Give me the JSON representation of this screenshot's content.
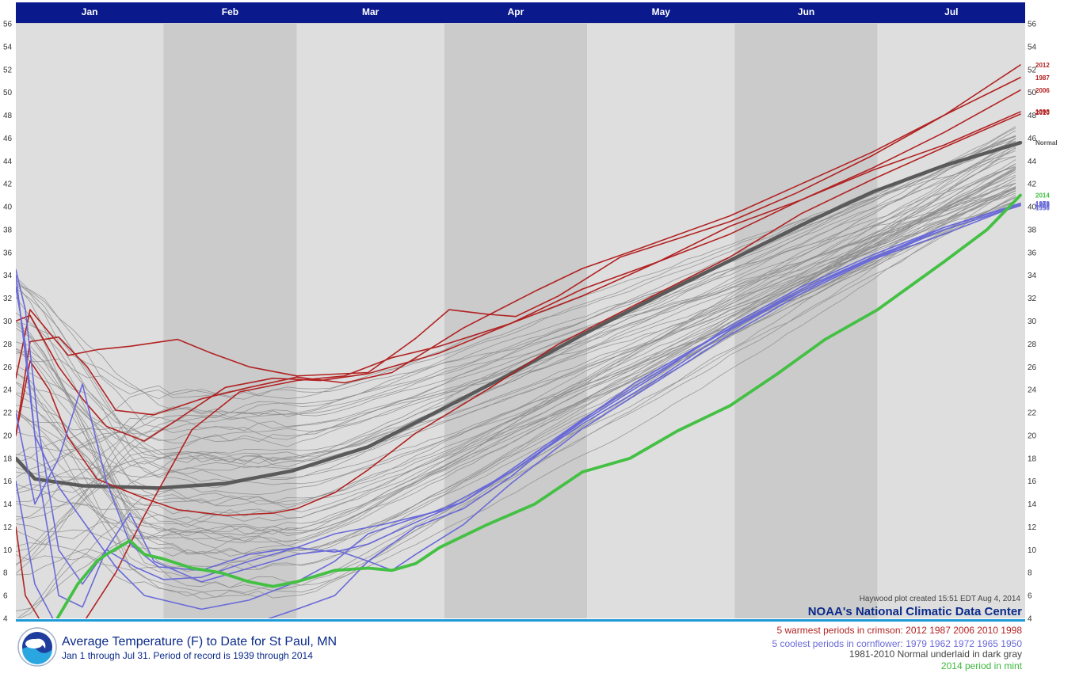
{
  "title": "Average Temperature (F) to Date for St Paul, MN",
  "subtitle": "Jan 1 through Jul 31. Period of record is 1939 through 2014",
  "credit": "Haywood plot created 15:51 EDT Aug 4, 2014",
  "source": "NOAA's National Climatic Data Center",
  "legend": {
    "warm": "5 warmest periods in crimson: 2012 1987 2006 2010 1998",
    "cool": "5 coolest periods in cornflower: 1979 1962 1972 1965 1950",
    "normal": "1981-2010 Normal underlaid in dark gray",
    "current": "2014 period in mint"
  },
  "colors": {
    "warm": "#b22222",
    "cool": "#6a6ad8",
    "normal": "#5a5a5a",
    "current": "#44c044",
    "other": "#8c8c8c",
    "header": "#0a1a8c",
    "band_light": "#dedede",
    "band_dark": "#cbcbcb"
  },
  "chart_data": {
    "type": "line",
    "x_unit": "day of year",
    "months": [
      "Jan",
      "Feb",
      "Mar",
      "Apr",
      "May",
      "Jun",
      "Jul"
    ],
    "month_days": [
      31,
      28,
      31,
      30,
      31,
      30,
      31
    ],
    "ylim": [
      4,
      56
    ],
    "yticks": [
      4,
      6,
      8,
      10,
      12,
      14,
      16,
      18,
      20,
      22,
      24,
      26,
      28,
      30,
      32,
      34,
      36,
      38,
      40,
      42,
      44,
      46,
      48,
      50,
      52,
      54,
      56
    ],
    "series": [
      {
        "name": "Normal",
        "group": "normal",
        "label": "Normal",
        "points": [
          [
            1,
            18
          ],
          [
            5,
            16.2
          ],
          [
            15,
            15.6
          ],
          [
            31,
            15.4
          ],
          [
            45,
            15.8
          ],
          [
            59,
            16.9
          ],
          [
            75,
            19
          ],
          [
            90,
            22.2
          ],
          [
            105,
            25.4
          ],
          [
            120,
            28.8
          ],
          [
            135,
            32
          ],
          [
            151,
            35.3
          ],
          [
            166,
            38.4
          ],
          [
            181,
            41.3
          ],
          [
            196,
            43.6
          ],
          [
            212,
            45.6
          ]
        ]
      },
      {
        "name": "2012",
        "group": "warm",
        "label": "2012",
        "points": [
          [
            1,
            25
          ],
          [
            4,
            31
          ],
          [
            8,
            29
          ],
          [
            12,
            27
          ],
          [
            18,
            27.5
          ],
          [
            25,
            27.8
          ],
          [
            35,
            28.4
          ],
          [
            42,
            27.2
          ],
          [
            50,
            26
          ],
          [
            60,
            25.2
          ],
          [
            75,
            25.5
          ],
          [
            85,
            28.5
          ],
          [
            92,
            31
          ],
          [
            100,
            30.6
          ],
          [
            106,
            30.4
          ],
          [
            115,
            32.2
          ],
          [
            128,
            35.6
          ],
          [
            140,
            37.2
          ],
          [
            151,
            38.7
          ],
          [
            165,
            41.2
          ],
          [
            181,
            44.5
          ],
          [
            196,
            48
          ],
          [
            212,
            52.4
          ]
        ]
      },
      {
        "name": "1987",
        "group": "warm",
        "label": "1987",
        "points": [
          [
            1,
            20
          ],
          [
            4,
            28.2
          ],
          [
            10,
            28.6
          ],
          [
            16,
            26
          ],
          [
            22,
            22.2
          ],
          [
            30,
            21.8
          ],
          [
            40,
            23.2
          ],
          [
            50,
            24.2
          ],
          [
            60,
            25.1
          ],
          [
            70,
            24.6
          ],
          [
            80,
            25.5
          ],
          [
            95,
            29.4
          ],
          [
            110,
            32.6
          ],
          [
            120,
            34.6
          ],
          [
            131,
            36.2
          ],
          [
            151,
            39.2
          ],
          [
            166,
            42
          ],
          [
            181,
            44.8
          ],
          [
            196,
            48
          ],
          [
            212,
            51.3
          ]
        ]
      },
      {
        "name": "2006",
        "group": "warm",
        "label": "2006",
        "points": [
          [
            1,
            30
          ],
          [
            4,
            30.5
          ],
          [
            10,
            26
          ],
          [
            15,
            23.2
          ],
          [
            20,
            20.8
          ],
          [
            28,
            19.5
          ],
          [
            35,
            21.4
          ],
          [
            45,
            24.2
          ],
          [
            55,
            25
          ],
          [
            65,
            24.8
          ],
          [
            75,
            25.4
          ],
          [
            90,
            27.2
          ],
          [
            105,
            29.8
          ],
          [
            120,
            32.8
          ],
          [
            136,
            35.2
          ],
          [
            151,
            37.6
          ],
          [
            166,
            40.6
          ],
          [
            181,
            43.4
          ],
          [
            196,
            46.5
          ],
          [
            212,
            50.2
          ]
        ]
      },
      {
        "name": "2010",
        "group": "warm",
        "label": "2010",
        "points": [
          [
            1,
            20
          ],
          [
            4,
            26.5
          ],
          [
            8,
            24
          ],
          [
            12,
            19.8
          ],
          [
            18,
            16.2
          ],
          [
            22,
            15.5
          ],
          [
            28,
            14.5
          ],
          [
            35,
            13.5
          ],
          [
            45,
            13
          ],
          [
            55,
            13.2
          ],
          [
            60,
            13.6
          ],
          [
            68,
            15
          ],
          [
            75,
            17
          ],
          [
            85,
            20.2
          ],
          [
            100,
            24
          ],
          [
            115,
            28
          ],
          [
            131,
            31.4
          ],
          [
            151,
            35.6
          ],
          [
            166,
            39.4
          ],
          [
            181,
            42.4
          ],
          [
            196,
            45.2
          ],
          [
            212,
            48.1
          ]
        ]
      },
      {
        "name": "1998",
        "group": "warm",
        "label": "1998",
        "points": [
          [
            1,
            12
          ],
          [
            3,
            6
          ],
          [
            8,
            2.5
          ],
          [
            15,
            3.5
          ],
          [
            22,
            8
          ],
          [
            28,
            13
          ],
          [
            38,
            20.5
          ],
          [
            48,
            23.8
          ],
          [
            60,
            24.8
          ],
          [
            70,
            25.2
          ],
          [
            80,
            26.8
          ],
          [
            90,
            27.8
          ],
          [
            105,
            29.8
          ],
          [
            120,
            32.2
          ],
          [
            136,
            35.2
          ],
          [
            151,
            38.3
          ],
          [
            166,
            40.6
          ],
          [
            181,
            43.2
          ],
          [
            196,
            45.4
          ],
          [
            212,
            48.3
          ]
        ]
      },
      {
        "name": "1979",
        "group": "cool",
        "label": "1979",
        "points": [
          [
            1,
            16
          ],
          [
            5,
            7
          ],
          [
            10,
            3
          ],
          [
            20,
            2.8
          ],
          [
            31,
            1.6
          ],
          [
            40,
            3.2
          ],
          [
            50,
            3.4
          ],
          [
            60,
            4.8
          ],
          [
            68,
            6
          ],
          [
            75,
            9
          ],
          [
            85,
            12
          ],
          [
            95,
            13.6
          ],
          [
            105,
            16.4
          ],
          [
            115,
            19.8
          ],
          [
            131,
            24.6
          ],
          [
            146,
            28.2
          ],
          [
            162,
            31.8
          ],
          [
            177,
            34.8
          ],
          [
            196,
            37.6
          ],
          [
            212,
            40.2
          ]
        ]
      },
      {
        "name": "1962",
        "group": "cool",
        "label": "1962",
        "points": [
          [
            1,
            34
          ],
          [
            5,
            20
          ],
          [
            10,
            15.5
          ],
          [
            16,
            12
          ],
          [
            22,
            8.5
          ],
          [
            28,
            6
          ],
          [
            40,
            4.8
          ],
          [
            50,
            5.6
          ],
          [
            60,
            7.2
          ],
          [
            68,
            9
          ],
          [
            75,
            11.4
          ],
          [
            85,
            12.8
          ],
          [
            95,
            14.2
          ],
          [
            105,
            17
          ],
          [
            120,
            21.4
          ],
          [
            136,
            25.6
          ],
          [
            151,
            29.4
          ],
          [
            166,
            32.8
          ],
          [
            181,
            35.6
          ],
          [
            196,
            38
          ],
          [
            212,
            40.1
          ]
        ]
      },
      {
        "name": "1972",
        "group": "cool",
        "label": "1972",
        "points": [
          [
            1,
            33
          ],
          [
            3,
            28
          ],
          [
            6,
            16
          ],
          [
            10,
            6
          ],
          [
            15,
            5
          ],
          [
            20,
            10
          ],
          [
            26,
            8.5
          ],
          [
            32,
            7.4
          ],
          [
            40,
            7.6
          ],
          [
            50,
            9
          ],
          [
            60,
            10.2
          ],
          [
            68,
            11.4
          ],
          [
            78,
            12.2
          ],
          [
            90,
            13.4
          ],
          [
            105,
            16.8
          ],
          [
            120,
            21
          ],
          [
            136,
            25
          ],
          [
            151,
            29.2
          ],
          [
            166,
            32.6
          ],
          [
            181,
            35.5
          ],
          [
            196,
            38.2
          ],
          [
            212,
            40.3
          ]
        ]
      },
      {
        "name": "1965",
        "group": "cool",
        "label": "1965",
        "points": [
          [
            1,
            22
          ],
          [
            5,
            14
          ],
          [
            10,
            18
          ],
          [
            15,
            24.5
          ],
          [
            20,
            16
          ],
          [
            25,
            10.5
          ],
          [
            31,
            8.5
          ],
          [
            40,
            8.2
          ],
          [
            50,
            9.6
          ],
          [
            60,
            10.2
          ],
          [
            68,
            9.8
          ],
          [
            75,
            10.5
          ],
          [
            85,
            12.4
          ],
          [
            95,
            14.2
          ],
          [
            105,
            16.8
          ],
          [
            120,
            21.2
          ],
          [
            136,
            25.4
          ],
          [
            151,
            29.6
          ],
          [
            166,
            33
          ],
          [
            181,
            35.8
          ],
          [
            196,
            38.2
          ],
          [
            212,
            40.2
          ]
        ]
      },
      {
        "name": "1950",
        "group": "cool",
        "label": "1950",
        "points": [
          [
            1,
            34.5
          ],
          [
            3,
            31
          ],
          [
            6,
            20
          ],
          [
            10,
            10
          ],
          [
            15,
            7
          ],
          [
            20,
            10
          ],
          [
            25,
            13.2
          ],
          [
            30,
            9
          ],
          [
            40,
            7.2
          ],
          [
            50,
            8.4
          ],
          [
            60,
            9.6
          ],
          [
            68,
            10
          ],
          [
            75,
            9
          ],
          [
            80,
            8.2
          ],
          [
            85,
            9.6
          ],
          [
            95,
            12.2
          ],
          [
            105,
            15.8
          ],
          [
            120,
            20.6
          ],
          [
            136,
            24.8
          ],
          [
            151,
            28.8
          ],
          [
            166,
            32.4
          ],
          [
            181,
            35.4
          ],
          [
            196,
            38
          ],
          [
            212,
            40.1
          ]
        ]
      },
      {
        "name": "2014",
        "group": "current",
        "label": "2014",
        "points": [
          [
            7,
            2
          ],
          [
            10,
            4.2
          ],
          [
            14,
            7
          ],
          [
            18,
            9
          ],
          [
            20,
            9.6
          ],
          [
            25,
            10.8
          ],
          [
            28,
            9.6
          ],
          [
            32,
            9.2
          ],
          [
            38,
            8.4
          ],
          [
            44,
            8
          ],
          [
            50,
            7.2
          ],
          [
            55,
            6.8
          ],
          [
            60,
            7.2
          ],
          [
            68,
            8.2
          ],
          [
            75,
            8.4
          ],
          [
            80,
            8.2
          ],
          [
            85,
            8.8
          ],
          [
            90,
            10.2
          ],
          [
            100,
            12.2
          ],
          [
            110,
            14
          ],
          [
            120,
            16.8
          ],
          [
            130,
            18
          ],
          [
            140,
            20.4
          ],
          [
            151,
            22.6
          ],
          [
            161,
            25.4
          ],
          [
            171,
            28.4
          ],
          [
            182,
            31
          ],
          [
            196,
            35.2
          ],
          [
            205,
            38
          ],
          [
            212,
            41
          ]
        ]
      }
    ]
  }
}
